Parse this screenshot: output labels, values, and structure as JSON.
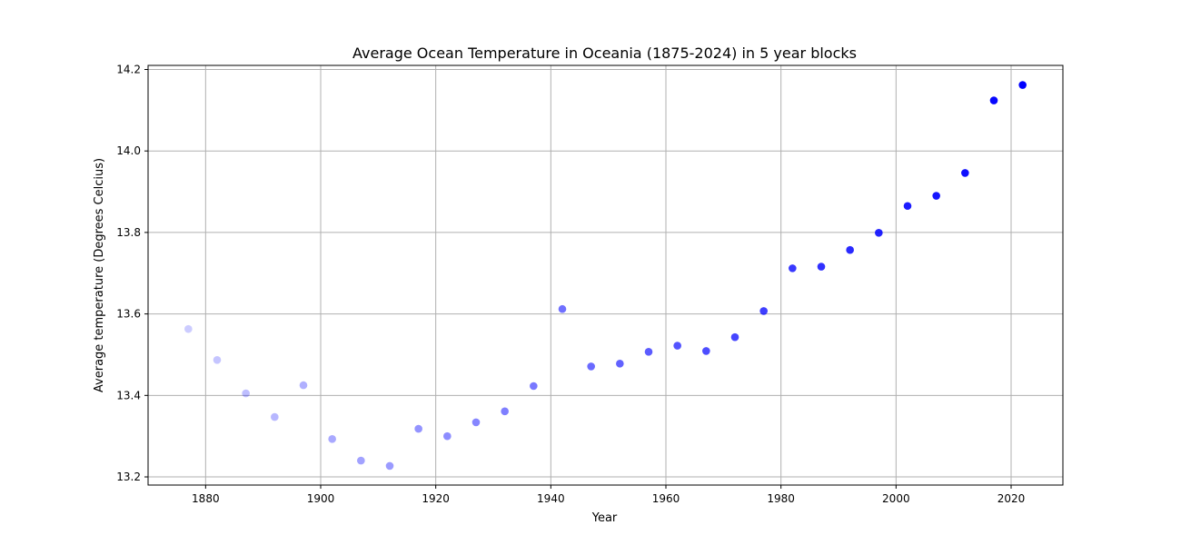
{
  "chart_data": {
    "type": "scatter",
    "title": "Average Ocean Temperature in Oceania (1875-2024) in 5 year blocks",
    "xlabel": "Year",
    "ylabel": "Average temperature (Degrees Celcius)",
    "xlim": [
      1870,
      2029
    ],
    "ylim": [
      13.18,
      14.21
    ],
    "xticks": [
      1880,
      1900,
      1920,
      1940,
      1960,
      1980,
      2000,
      2020
    ],
    "yticks": [
      13.2,
      13.4,
      13.6,
      13.8,
      14.0,
      14.2
    ],
    "xtick_labels": [
      "1880",
      "1900",
      "1920",
      "1940",
      "1960",
      "1980",
      "2000",
      "2020"
    ],
    "ytick_labels": [
      "13.2",
      "13.4",
      "13.6",
      "13.8",
      "14.0",
      "14.2"
    ],
    "grid": true,
    "marker_color": "#0000ff",
    "alpha_range": [
      0.2,
      1.0
    ],
    "points": [
      {
        "x": 1877,
        "y": 13.563
      },
      {
        "x": 1882,
        "y": 13.487
      },
      {
        "x": 1887,
        "y": 13.405
      },
      {
        "x": 1892,
        "y": 13.347
      },
      {
        "x": 1897,
        "y": 13.425
      },
      {
        "x": 1902,
        "y": 13.293
      },
      {
        "x": 1907,
        "y": 13.24
      },
      {
        "x": 1912,
        "y": 13.227
      },
      {
        "x": 1917,
        "y": 13.318
      },
      {
        "x": 1922,
        "y": 13.3
      },
      {
        "x": 1927,
        "y": 13.334
      },
      {
        "x": 1932,
        "y": 13.361
      },
      {
        "x": 1937,
        "y": 13.423
      },
      {
        "x": 1942,
        "y": 13.612
      },
      {
        "x": 1947,
        "y": 13.471
      },
      {
        "x": 1952,
        "y": 13.478
      },
      {
        "x": 1957,
        "y": 13.507
      },
      {
        "x": 1962,
        "y": 13.522
      },
      {
        "x": 1967,
        "y": 13.509
      },
      {
        "x": 1972,
        "y": 13.543
      },
      {
        "x": 1977,
        "y": 13.607
      },
      {
        "x": 1982,
        "y": 13.712
      },
      {
        "x": 1987,
        "y": 13.716
      },
      {
        "x": 1992,
        "y": 13.757
      },
      {
        "x": 1997,
        "y": 13.799
      },
      {
        "x": 2002,
        "y": 13.865
      },
      {
        "x": 2007,
        "y": 13.89
      },
      {
        "x": 2012,
        "y": 13.946
      },
      {
        "x": 2017,
        "y": 14.124
      },
      {
        "x": 2022,
        "y": 14.162
      }
    ]
  }
}
